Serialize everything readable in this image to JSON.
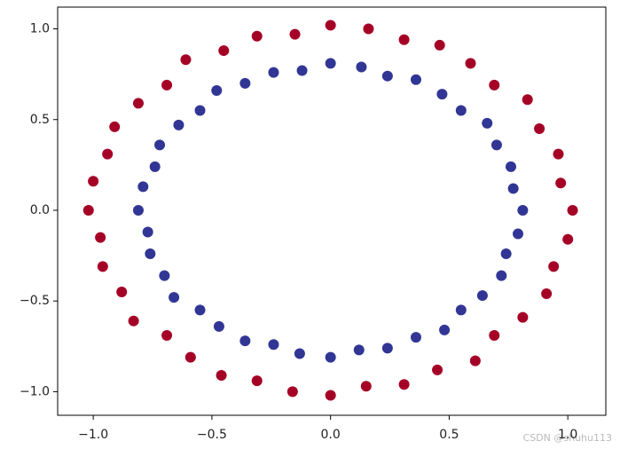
{
  "chart_data": {
    "type": "scatter",
    "xlim": [
      -1.15,
      1.16
    ],
    "ylim": [
      -1.13,
      1.12
    ],
    "xticks": [
      {
        "value": -1,
        "label": "−1.0"
      },
      {
        "value": -0.5,
        "label": "−0.5"
      },
      {
        "value": 0,
        "label": "0.0"
      },
      0.5,
      {
        "value": 1,
        "label": "1.0"
      }
    ],
    "yticks": [
      {
        "value": -1,
        "label": "−1.0"
      },
      {
        "value": -0.5,
        "label": "−0.5"
      },
      {
        "value": 0,
        "label": "0.0"
      },
      0.5,
      {
        "value": 1,
        "label": "1.0"
      }
    ],
    "series": [
      {
        "color": "#a50026",
        "x": [
          1.02,
          0.97,
          0.96,
          0.88,
          0.83,
          0.69,
          0.59,
          0.46,
          0.31,
          0.16,
          0,
          -0.15,
          -0.31,
          -0.45,
          -0.61,
          -0.69,
          -0.81,
          -0.91,
          -0.94,
          -1.0,
          -1.02,
          -0.97,
          -0.96,
          -0.88,
          -0.83,
          -0.69,
          -0.59,
          -0.46,
          -0.31,
          -0.16,
          0,
          0.15,
          0.31,
          0.45,
          0.61,
          0.69,
          0.81,
          0.91,
          0.94,
          1.0
        ],
        "values": [
          0,
          0.15,
          0.31,
          0.45,
          0.61,
          0.69,
          0.81,
          0.91,
          0.94,
          1.0,
          1.02,
          0.97,
          0.96,
          0.88,
          0.83,
          0.69,
          0.59,
          0.46,
          0.31,
          0.16,
          0,
          -0.15,
          -0.31,
          -0.45,
          -0.61,
          -0.69,
          -0.81,
          -0.91,
          -0.94,
          -1.0,
          -1.02,
          -0.97,
          -0.96,
          -0.88,
          -0.83,
          -0.69,
          -0.59,
          -0.46,
          -0.31,
          -0.16
        ]
      },
      {
        "color": "#313695",
        "x": [
          0.81,
          0.77,
          0.76,
          0.7,
          0.66,
          0.55,
          0.47,
          0.36,
          0.24,
          0.13,
          0,
          -0.12,
          -0.24,
          -0.36,
          -0.48,
          -0.55,
          -0.64,
          -0.72,
          -0.74,
          -0.79,
          -0.81,
          -0.77,
          -0.76,
          -0.7,
          -0.66,
          -0.55,
          -0.47,
          -0.36,
          -0.24,
          -0.13,
          0,
          0.12,
          0.24,
          0.36,
          0.48,
          0.55,
          0.64,
          0.72,
          0.74,
          0.79
        ],
        "values": [
          0,
          0.12,
          0.24,
          0.36,
          0.48,
          0.55,
          0.64,
          0.72,
          0.74,
          0.79,
          0.81,
          0.77,
          0.76,
          0.7,
          0.66,
          0.55,
          0.47,
          0.36,
          0.24,
          0.13,
          0,
          -0.12,
          -0.24,
          -0.36,
          -0.48,
          -0.55,
          -0.64,
          -0.72,
          -0.74,
          -0.79,
          -0.81,
          -0.77,
          -0.76,
          -0.7,
          -0.66,
          -0.55,
          -0.47,
          -0.36,
          -0.24,
          -0.13
        ]
      }
    ]
  },
  "watermark": "CSDN @shuhu113"
}
